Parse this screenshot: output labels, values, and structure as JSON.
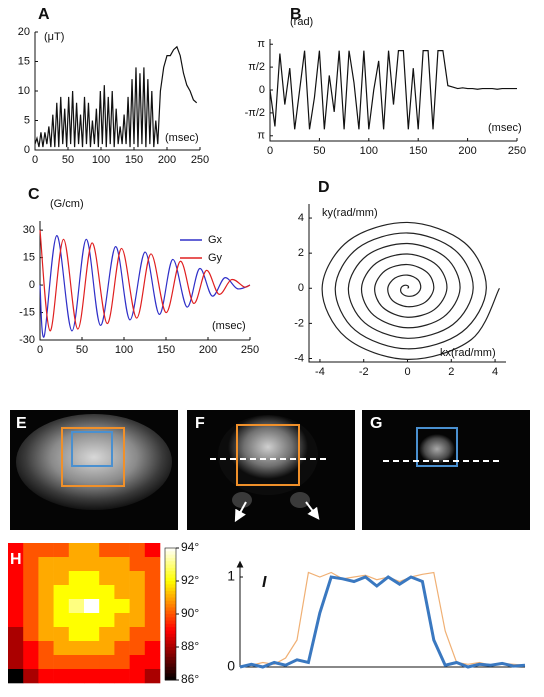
{
  "chart_data": [
    {
      "type": "line",
      "title": "A",
      "ylabel": "(μT)",
      "xlabel": "(msec)",
      "xlim": [
        0,
        250
      ],
      "ylim": [
        0,
        20
      ],
      "xticks": [
        0,
        50,
        100,
        150,
        200,
        250
      ],
      "yticks": [
        0,
        5,
        10,
        15,
        20
      ],
      "x": [
        0,
        3,
        6,
        9,
        12,
        15,
        18,
        21,
        24,
        27,
        30,
        33,
        36,
        39,
        42,
        45,
        48,
        51,
        54,
        57,
        60,
        63,
        66,
        69,
        72,
        75,
        78,
        81,
        84,
        87,
        90,
        93,
        96,
        99,
        102,
        105,
        108,
        111,
        114,
        117,
        120,
        123,
        126,
        129,
        132,
        135,
        138,
        141,
        144,
        147,
        150,
        153,
        156,
        159,
        162,
        165,
        168,
        171,
        174,
        177,
        180,
        183,
        186,
        190,
        195,
        200,
        205,
        210,
        215,
        220,
        225,
        230,
        235,
        240,
        245
      ],
      "series": [
        {
          "color": "#111111",
          "values": [
            1,
            2,
            0.5,
            3,
            0.5,
            3,
            1,
            4,
            0.5,
            6,
            0.5,
            8,
            0.5,
            9,
            1,
            7,
            0.5,
            9,
            1,
            10,
            0.5,
            8,
            1,
            6,
            0.5,
            9,
            1,
            8,
            0.5,
            5,
            1,
            7,
            0.5,
            10,
            1,
            11,
            0.5,
            9,
            1,
            10,
            0.5,
            7,
            1,
            4,
            1,
            6,
            1,
            9,
            0.5,
            12,
            1,
            14,
            0.5,
            13,
            1,
            14,
            0.5,
            12,
            1,
            10,
            0.5,
            5,
            1,
            10,
            14,
            16,
            16,
            17,
            17.5,
            16,
            13,
            11,
            10,
            8.5,
            8
          ]
        }
      ]
    },
    {
      "type": "line",
      "title": "B",
      "ylabel": "(rad)",
      "xlabel": "(msec)",
      "xlim": [
        0,
        250
      ],
      "ylim": [
        -3.5,
        3.5
      ],
      "xticks": [
        0,
        50,
        100,
        150,
        200,
        250
      ],
      "yticks": [
        {
          "value": -3.1416,
          "label": "π"
        },
        {
          "value": -1.5708,
          "label": "-π/2"
        },
        0,
        {
          "value": 1.5708,
          "label": "π/2"
        },
        {
          "value": 3.1416,
          "label": "π"
        }
      ],
      "x": [
        0,
        5,
        10,
        15,
        20,
        25,
        30,
        35,
        40,
        45,
        50,
        55,
        60,
        65,
        70,
        75,
        80,
        85,
        90,
        95,
        100,
        105,
        110,
        115,
        120,
        125,
        130,
        135,
        140,
        145,
        150,
        155,
        160,
        165,
        170,
        175,
        180,
        185,
        190,
        195,
        200,
        205,
        210,
        215,
        220,
        225,
        230,
        235,
        240,
        245,
        250
      ],
      "series": [
        {
          "color": "#111111",
          "values": [
            0,
            -2.5,
            2.5,
            -1,
            1.5,
            -2.7,
            0,
            2.7,
            -2.7,
            -0.5,
            2.7,
            -2.7,
            1,
            -1.5,
            2.7,
            -2.7,
            2.7,
            0.5,
            -2.7,
            2.7,
            -2.7,
            0,
            2,
            -2.7,
            2.7,
            -1,
            2.7,
            2.7,
            -2.7,
            1.5,
            -2.7,
            2.7,
            2.7,
            -2.7,
            2.7,
            2.7,
            0.3,
            0.2,
            0.1,
            0.15,
            0.1,
            0.1,
            0.05,
            0.1,
            0.1,
            0.1,
            0.05,
            0.1,
            0.1,
            0.1,
            0.1
          ]
        }
      ]
    },
    {
      "type": "line",
      "title": "C",
      "ylabel": "(G/cm)",
      "xlabel": "(msec)",
      "xlim": [
        0,
        250
      ],
      "ylim": [
        -30,
        35
      ],
      "curve": "smooth",
      "xticks": [
        0,
        50,
        100,
        150,
        200,
        250
      ],
      "yticks": [
        -30,
        -15,
        0,
        15,
        30
      ],
      "series": [
        {
          "name": "Gx",
          "color": "#3030c8",
          "x": [
            0,
            5,
            20,
            38,
            55,
            72,
            90,
            107,
            125,
            142,
            158,
            175,
            190,
            205,
            220,
            235,
            250
          ],
          "values": [
            0,
            -28,
            27,
            -25,
            25,
            -22,
            21,
            -19,
            18,
            -16,
            14,
            -12,
            9,
            -6,
            4,
            -2,
            0
          ]
        },
        {
          "name": "Gy",
          "color": "#e02020",
          "x": [
            0,
            12,
            28,
            45,
            62,
            80,
            97,
            115,
            132,
            150,
            167,
            183,
            198,
            213,
            228,
            243,
            250
          ],
          "values": [
            30,
            -25,
            25,
            -24,
            23,
            -21,
            20,
            -18,
            17,
            -15,
            13,
            -10,
            8,
            -5,
            3,
            -1,
            0
          ]
        }
      ]
    },
    {
      "type": "line",
      "title": "D",
      "ylabel": "ky(rad/mm)",
      "xlabel": "kx(rad/mm)",
      "xlim": [
        -4.5,
        4.5
      ],
      "ylim": [
        -4.2,
        4.8
      ],
      "curve": "smooth",
      "xticks": [
        -4,
        -2,
        0,
        2,
        4
      ],
      "yticks": [
        -4,
        -2,
        0,
        2,
        4
      ],
      "x": [
        0,
        0.05,
        0,
        -0.16,
        -0.3,
        -0.27,
        0,
        0.37,
        0.6,
        0.48,
        0,
        -0.58,
        -0.9,
        -0.69,
        0,
        0.8,
        1.2,
        0.9,
        0,
        -1.01,
        -1.5,
        -1.11,
        0,
        1.22,
        1.8,
        1.33,
        0,
        -1.43,
        -2.1,
        -1.54,
        0,
        1.64,
        2.4,
        1.75,
        0,
        -1.86,
        -2.7,
        -1.96,
        0,
        2.07,
        3,
        2.17,
        0,
        -2.28,
        -3.3,
        -2.39,
        0,
        2.49,
        3.6,
        2.6,
        0,
        -2.7,
        -3.9,
        -2.81,
        0,
        2.92,
        4.2
      ],
      "series": [
        {
          "color": "#222222",
          "values": [
            0,
            0.05,
            0.15,
            0.16,
            0,
            -0.27,
            -0.45,
            -0.37,
            0,
            0.48,
            0.75,
            0.58,
            0,
            -0.69,
            -1.05,
            -0.8,
            0,
            0.9,
            1.35,
            1.01,
            0,
            -1.11,
            -1.65,
            -1.22,
            0,
            1.33,
            1.95,
            1.43,
            0,
            -1.54,
            -2.25,
            -1.64,
            0,
            1.75,
            2.55,
            1.86,
            0,
            -1.96,
            -2.85,
            -2.07,
            0,
            2.17,
            3.15,
            2.28,
            0,
            -2.39,
            -3.45,
            -2.49,
            0,
            2.6,
            3.75,
            2.7,
            0,
            -2.81,
            -4.05,
            -2.92,
            0
          ]
        }
      ]
    },
    {
      "type": "heatmap",
      "title": "H",
      "colormap": "hot",
      "zlim": [
        86,
        94
      ],
      "zticks": [
        {
          "value": 86,
          "label": "86°"
        },
        {
          "value": 88,
          "label": "88°"
        },
        {
          "value": 90,
          "label": "90°"
        },
        {
          "value": 92,
          "label": "92°"
        },
        {
          "value": 94,
          "label": "94°"
        }
      ],
      "values": [
        [
          89,
          90,
          90,
          90,
          91,
          91,
          90,
          90,
          90,
          89
        ],
        [
          89,
          90,
          91,
          91,
          91,
          91,
          91,
          91,
          90,
          90
        ],
        [
          89,
          90,
          91,
          91,
          92,
          92,
          91,
          91,
          91,
          90
        ],
        [
          89,
          90,
          91,
          92,
          92,
          92,
          92,
          91,
          91,
          90
        ],
        [
          89,
          90,
          91,
          92,
          93,
          94,
          92,
          92,
          91,
          90
        ],
        [
          89,
          90,
          91,
          92,
          92,
          92,
          92,
          91,
          91,
          90
        ],
        [
          88,
          90,
          91,
          91,
          92,
          92,
          91,
          91,
          90,
          90
        ],
        [
          88,
          89,
          90,
          91,
          91,
          91,
          91,
          90,
          90,
          89
        ],
        [
          88,
          89,
          90,
          90,
          90,
          90,
          90,
          90,
          89,
          89
        ],
        [
          86,
          88,
          89,
          89,
          89,
          89,
          89,
          89,
          89,
          88
        ]
      ]
    },
    {
      "type": "line",
      "title": "I",
      "xlim": [
        0,
        100
      ],
      "ylim": [
        0,
        1.1
      ],
      "yticks": [
        0,
        1
      ],
      "x": [
        0,
        4,
        8,
        12,
        16,
        20,
        24,
        28,
        32,
        36,
        40,
        44,
        48,
        52,
        56,
        60,
        64,
        68,
        72,
        76,
        80,
        84,
        88,
        92,
        96,
        100
      ],
      "series": [
        {
          "color": "#f0b074",
          "values": [
            0,
            0.02,
            0.05,
            0.03,
            0.1,
            0.3,
            1.05,
            1.0,
            1.05,
            0.98,
            1.0,
            1.02,
            0.97,
            1.0,
            0.95,
            1.0,
            1.03,
            1.05,
            0.4,
            0.05,
            0.03,
            0.05,
            0.02,
            0.04,
            0.03,
            0.02
          ]
        },
        {
          "color": "#3a78c0",
          "width": 3,
          "values": [
            0,
            0.03,
            0,
            0.05,
            0.02,
            0.08,
            0.05,
            0.6,
            1.0,
            0.98,
            0.95,
            1.0,
            0.9,
            1.0,
            0.92,
            1.0,
            0.95,
            0.3,
            0.02,
            0.05,
            0.0,
            0.03,
            0.02,
            0.04,
            0.01,
            0.02
          ]
        }
      ]
    }
  ],
  "images": [
    {
      "label": "E"
    },
    {
      "label": "F"
    },
    {
      "label": "G"
    }
  ]
}
